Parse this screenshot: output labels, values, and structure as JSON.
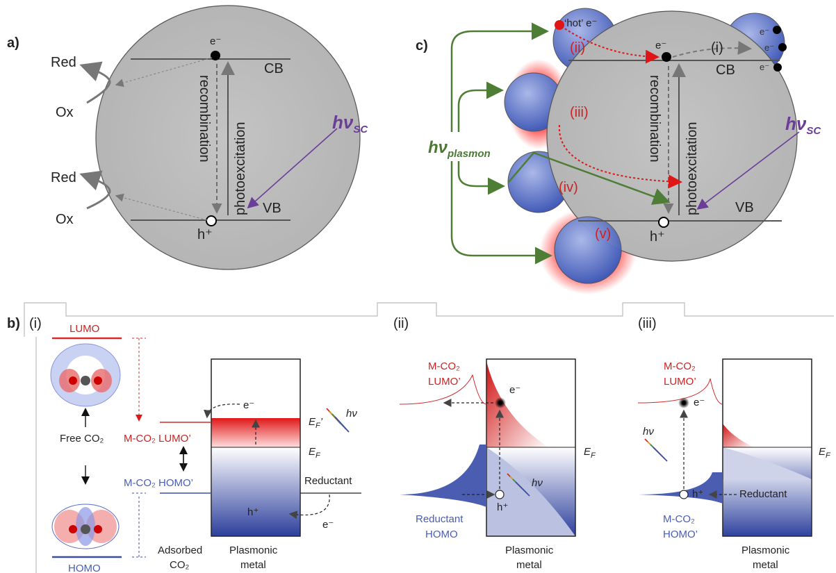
{
  "panel_a": {
    "label": "a)",
    "red_top": "Red",
    "ox_top": "Ox",
    "red_bottom": "Red",
    "ox_bottom": "Ox",
    "electron": "e⁻",
    "cb": "CB",
    "vb": "VB",
    "hole": "h⁺",
    "recombination": "recombination",
    "photoexcitation": "photoexcitation",
    "hv": "hν",
    "hv_sub": "SC"
  },
  "panel_c": {
    "label": "c)",
    "hot": "‘hot’ e⁻",
    "ii": "(ii)",
    "i": "(i)",
    "iii": "(iii)",
    "iv": "(iv)",
    "v": "(v)",
    "electron": "e⁻",
    "cb": "CB",
    "vb": "VB",
    "hole": "h⁺",
    "recombination": "recombination",
    "photoexcitation": "photoexcitation",
    "hv_plasmon": "hν",
    "hv_plasmon_sub": "plasmon",
    "hv_sc": "hν",
    "hv_sc_sub": "SC",
    "small_e": [
      "e⁻",
      "e⁻",
      "e⁻"
    ]
  },
  "panel_b": {
    "label": "b)",
    "i": {
      "tab": "(i)",
      "lumo": "LUMO",
      "homo": "HOMO",
      "free_co2": "Free CO₂",
      "mco2_lumo": "M-CO₂ LUMO’",
      "mco2_homo": "M-CO₂ HOMO’",
      "ef_prime": "Eᴅ’",
      "ef": "E",
      "ef_label": "E",
      "ef_sub": "F",
      "ef_prime_label": "E",
      "ef_prime_sub": "F",
      "prime": "’",
      "hv": "hν",
      "electron_top": "e⁻",
      "electron_bottom": "e⁻",
      "hole": "h⁺",
      "reductant": "Reductant",
      "adsorbed1": "Adsorbed",
      "adsorbed2": "CO₂",
      "metal1": "Plasmonic",
      "metal2": "metal"
    },
    "ii": {
      "tab": "(ii)",
      "mco2": "M-CO₂",
      "lumo": "LUMO’",
      "reductant": "Reductant",
      "homo": "HOMO",
      "ef_label": "E",
      "ef_sub": "F",
      "electron": "e⁻",
      "hole": "h⁺",
      "hv": "hν",
      "metal1": "Plasmonic",
      "metal2": "metal"
    },
    "iii": {
      "tab": "(iii)",
      "mco2": "M-CO₂",
      "lumo": "LUMO’",
      "mco2_b": "M-CO₂",
      "homo": "HOMO’",
      "ef_label": "E",
      "ef_sub": "F",
      "electron": "e⁻",
      "hole": "h⁺",
      "hv": "hν",
      "reductant": "Reductant",
      "metal1": "Plasmonic",
      "metal2": "metal"
    }
  },
  "colors": {
    "red": "#d42a2a",
    "blue": "#3b4fa8",
    "green": "#4e7d36",
    "purple": "#6a3d99",
    "gray": "#bdbdbd"
  }
}
